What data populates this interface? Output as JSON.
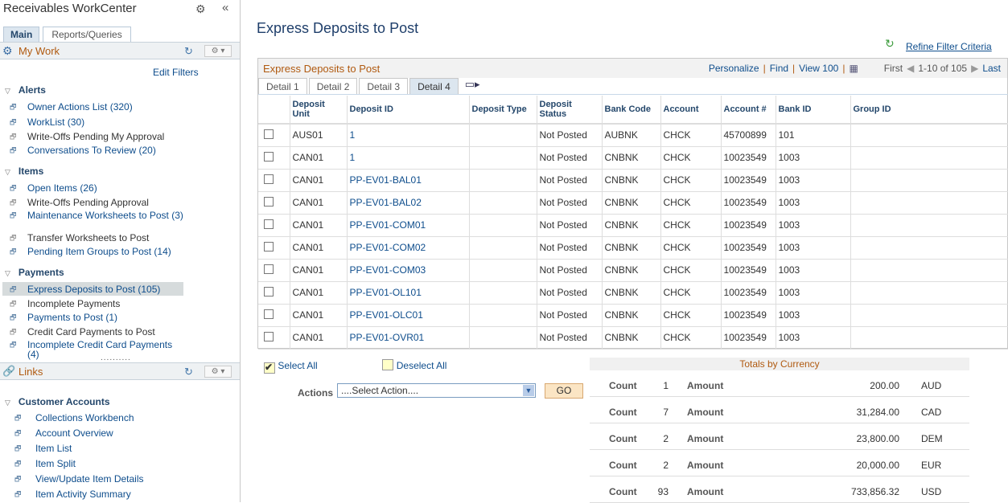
{
  "sidebar": {
    "title": "Receivables WorkCenter",
    "tabs": [
      "Main",
      "Reports/Queries"
    ],
    "mywork": {
      "title": "My Work",
      "edit_filters": "Edit Filters"
    },
    "sections": [
      {
        "label": "Alerts",
        "items": [
          {
            "label": "Owner Actions List (320)",
            "link": true
          },
          {
            "label": "WorkList (30)",
            "link": true
          },
          {
            "label": "Write-Offs Pending My Approval",
            "link": false
          },
          {
            "label": "Conversations To Review (20)",
            "link": true
          }
        ]
      },
      {
        "label": "Items",
        "items": [
          {
            "label": "Open Items (26)",
            "link": true
          },
          {
            "label": "Write-Offs Pending Approval",
            "link": false
          },
          {
            "label": "Maintenance Worksheets to Post (3)",
            "link": true
          },
          {
            "label": "Transfer Worksheets to Post",
            "link": false
          },
          {
            "label": "Pending Item Groups to Post (14)",
            "link": true
          }
        ]
      },
      {
        "label": "Payments",
        "items": [
          {
            "label": "Express Deposits to Post (105)",
            "link": true,
            "selected": true
          },
          {
            "label": "Incomplete Payments",
            "link": false
          },
          {
            "label": "Payments to Post (1)",
            "link": true
          },
          {
            "label": "Credit Card Payments to Post",
            "link": false
          },
          {
            "label": "Incomplete Credit Card Payments (4)",
            "link": true
          }
        ]
      }
    ],
    "links": {
      "title": "Links",
      "section": "Customer Accounts",
      "items": [
        "Collections Workbench",
        "Account Overview",
        "Item List",
        "Item Split",
        "View/Update Item Details",
        "Item Activity Summary"
      ]
    }
  },
  "main": {
    "title": "Express Deposits to Post",
    "refine": "Refine Filter Criteria",
    "grid": {
      "title": "Express Deposits to Post",
      "personalize": "Personalize",
      "find": "Find",
      "view": "View 100",
      "first": "First",
      "range": "1-10 of 105",
      "last": "Last",
      "tabs": [
        "Detail 1",
        "Detail 2",
        "Detail 3",
        "Detail 4"
      ],
      "active_tab": "Detail 4",
      "columns": [
        "Deposit Unit",
        "Deposit ID",
        "Deposit Type",
        "Deposit Status",
        "Bank Code",
        "Account",
        "Account #",
        "Bank ID",
        "Group ID"
      ],
      "rows": [
        [
          "AUS01",
          "1",
          "",
          "Not Posted",
          "AUBNK",
          "CHCK",
          "45700899",
          "101",
          ""
        ],
        [
          "CAN01",
          "1",
          "",
          "Not Posted",
          "CNBNK",
          "CHCK",
          "10023549",
          "1003",
          ""
        ],
        [
          "CAN01",
          "PP-EV01-BAL01",
          "",
          "Not Posted",
          "CNBNK",
          "CHCK",
          "10023549",
          "1003",
          ""
        ],
        [
          "CAN01",
          "PP-EV01-BAL02",
          "",
          "Not Posted",
          "CNBNK",
          "CHCK",
          "10023549",
          "1003",
          ""
        ],
        [
          "CAN01",
          "PP-EV01-COM01",
          "",
          "Not Posted",
          "CNBNK",
          "CHCK",
          "10023549",
          "1003",
          ""
        ],
        [
          "CAN01",
          "PP-EV01-COM02",
          "",
          "Not Posted",
          "CNBNK",
          "CHCK",
          "10023549",
          "1003",
          ""
        ],
        [
          "CAN01",
          "PP-EV01-COM03",
          "",
          "Not Posted",
          "CNBNK",
          "CHCK",
          "10023549",
          "1003",
          ""
        ],
        [
          "CAN01",
          "PP-EV01-OL101",
          "",
          "Not Posted",
          "CNBNK",
          "CHCK",
          "10023549",
          "1003",
          ""
        ],
        [
          "CAN01",
          "PP-EV01-OLC01",
          "",
          "Not Posted",
          "CNBNK",
          "CHCK",
          "10023549",
          "1003",
          ""
        ],
        [
          "CAN01",
          "PP-EV01-OVR01",
          "",
          "Not Posted",
          "CNBNK",
          "CHCK",
          "10023549",
          "1003",
          ""
        ]
      ]
    },
    "select_all": "Select All",
    "deselect_all": "Deselect All",
    "actions_label": "Actions",
    "actions_value": "....Select Action....",
    "go": "GO",
    "totals": {
      "title": "Totals by Currency",
      "count_label": "Count",
      "amount_label": "Amount",
      "rows": [
        {
          "count": "1",
          "amount": "200.00",
          "currency": "AUD"
        },
        {
          "count": "7",
          "amount": "31,284.00",
          "currency": "CAD"
        },
        {
          "count": "2",
          "amount": "23,800.00",
          "currency": "DEM"
        },
        {
          "count": "2",
          "amount": "20,000.00",
          "currency": "EUR"
        },
        {
          "count": "93",
          "amount": "733,856.32",
          "currency": "USD"
        }
      ]
    }
  }
}
